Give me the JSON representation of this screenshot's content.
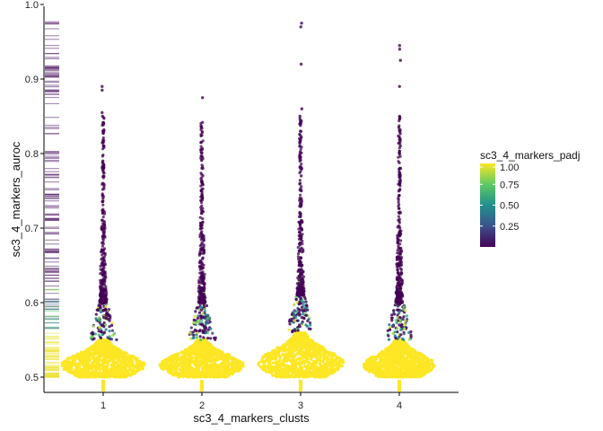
{
  "chart_data": {
    "type": "scatter",
    "subtype": "beeswarm with rug",
    "xlabel": "sc3_4_markers_clusts",
    "ylabel": "sc3_4_markers_auroc",
    "categories": [
      "1",
      "2",
      "3",
      "4"
    ],
    "y_ticks": [
      "0.5",
      "0.6",
      "0.7",
      "0.8",
      "0.9",
      "1.0"
    ],
    "ylim": [
      0.48,
      1.0
    ],
    "colorbar": {
      "title": "sc3_4_markers_padj",
      "palette": "viridis",
      "ticks": [
        "0.25",
        "0.50",
        "0.75",
        "1.00"
      ],
      "tick_values": [
        0.25,
        0.5,
        0.75,
        1.0
      ],
      "range": [
        0.0,
        1.0
      ],
      "colors": [
        "#440154",
        "#3b528b",
        "#21908d",
        "#5dc963",
        "#fde725"
      ]
    },
    "series": [
      {
        "cluster": "1",
        "bulk_center": 0.525,
        "bulk_range": [
          0.5,
          0.55
        ],
        "max": 0.89,
        "outliers": [
          0.89,
          0.885,
          0.855,
          0.85,
          0.84,
          0.83,
          0.81,
          0.79,
          0.78,
          0.77,
          0.76,
          0.74,
          0.72,
          0.7,
          0.69,
          0.68,
          0.67,
          0.66,
          0.65,
          0.64,
          0.63,
          0.62,
          0.61,
          0.6,
          0.59,
          0.58,
          0.57,
          0.56
        ]
      },
      {
        "cluster": "2",
        "bulk_center": 0.525,
        "bulk_range": [
          0.5,
          0.55
        ],
        "max": 0.875,
        "outliers": [
          0.875,
          0.815,
          0.805,
          0.78,
          0.76,
          0.74,
          0.72,
          0.7,
          0.68,
          0.66,
          0.65,
          0.64,
          0.63,
          0.62,
          0.61,
          0.6,
          0.59,
          0.58,
          0.57,
          0.56
        ]
      },
      {
        "cluster": "3",
        "bulk_center": 0.53,
        "bulk_range": [
          0.5,
          0.56
        ],
        "max": 0.975,
        "outliers": [
          0.975,
          0.97,
          0.92,
          0.86,
          0.85,
          0.84,
          0.83,
          0.82,
          0.81,
          0.8,
          0.79,
          0.78,
          0.77,
          0.76,
          0.75,
          0.74,
          0.73,
          0.72,
          0.71,
          0.7,
          0.69,
          0.68,
          0.67,
          0.66,
          0.65,
          0.64,
          0.63,
          0.62,
          0.61,
          0.6,
          0.59,
          0.58,
          0.57
        ]
      },
      {
        "cluster": "4",
        "bulk_center": 0.525,
        "bulk_range": [
          0.5,
          0.55
        ],
        "max": 0.945,
        "outliers": [
          0.945,
          0.94,
          0.925,
          0.89,
          0.835,
          0.83,
          0.81,
          0.8,
          0.78,
          0.76,
          0.74,
          0.72,
          0.7,
          0.68,
          0.66,
          0.65,
          0.64,
          0.63,
          0.62,
          0.61,
          0.6,
          0.59,
          0.58,
          0.57
        ]
      }
    ],
    "grid": false,
    "legend": "right"
  }
}
